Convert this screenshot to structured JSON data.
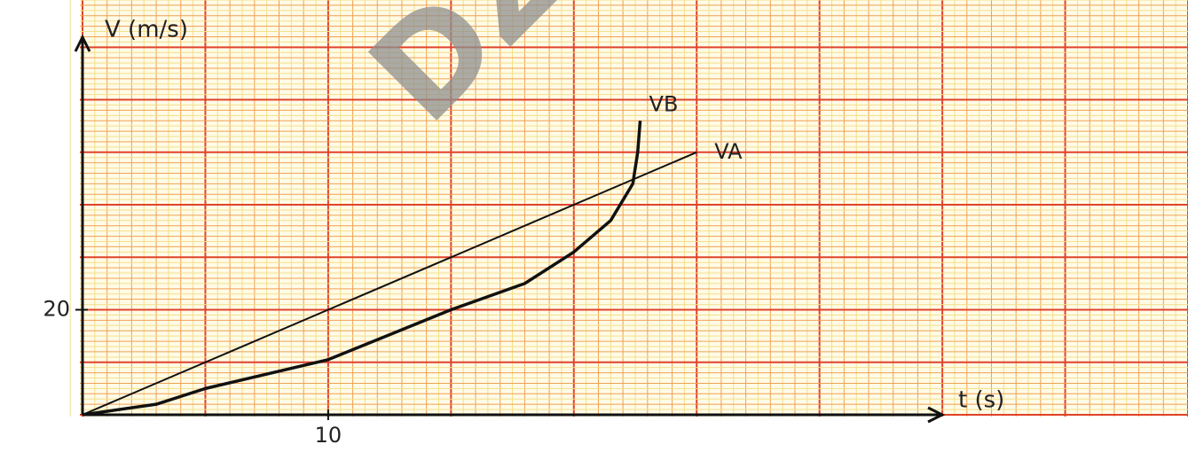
{
  "chart_data": {
    "type": "line",
    "watermark": "DZL",
    "xlabel": "t (s)",
    "ylabel": "V (m/s)",
    "xlim": [
      0,
      45
    ],
    "ylim": [
      0,
      79
    ],
    "xticks": [
      10
    ],
    "yticks": [
      20
    ],
    "series": [
      {
        "name": "VA",
        "color": "#111111",
        "x": [
          0,
          25
        ],
        "values": [
          0,
          50
        ]
      },
      {
        "name": "VB",
        "color": "#111111",
        "x": [
          0,
          3,
          5,
          10,
          15,
          18,
          20,
          21.5,
          22.4,
          22.6,
          22.7
        ],
        "values": [
          0,
          2,
          5,
          10.5,
          20,
          25,
          31,
          37,
          44,
          50,
          56
        ]
      }
    ]
  }
}
